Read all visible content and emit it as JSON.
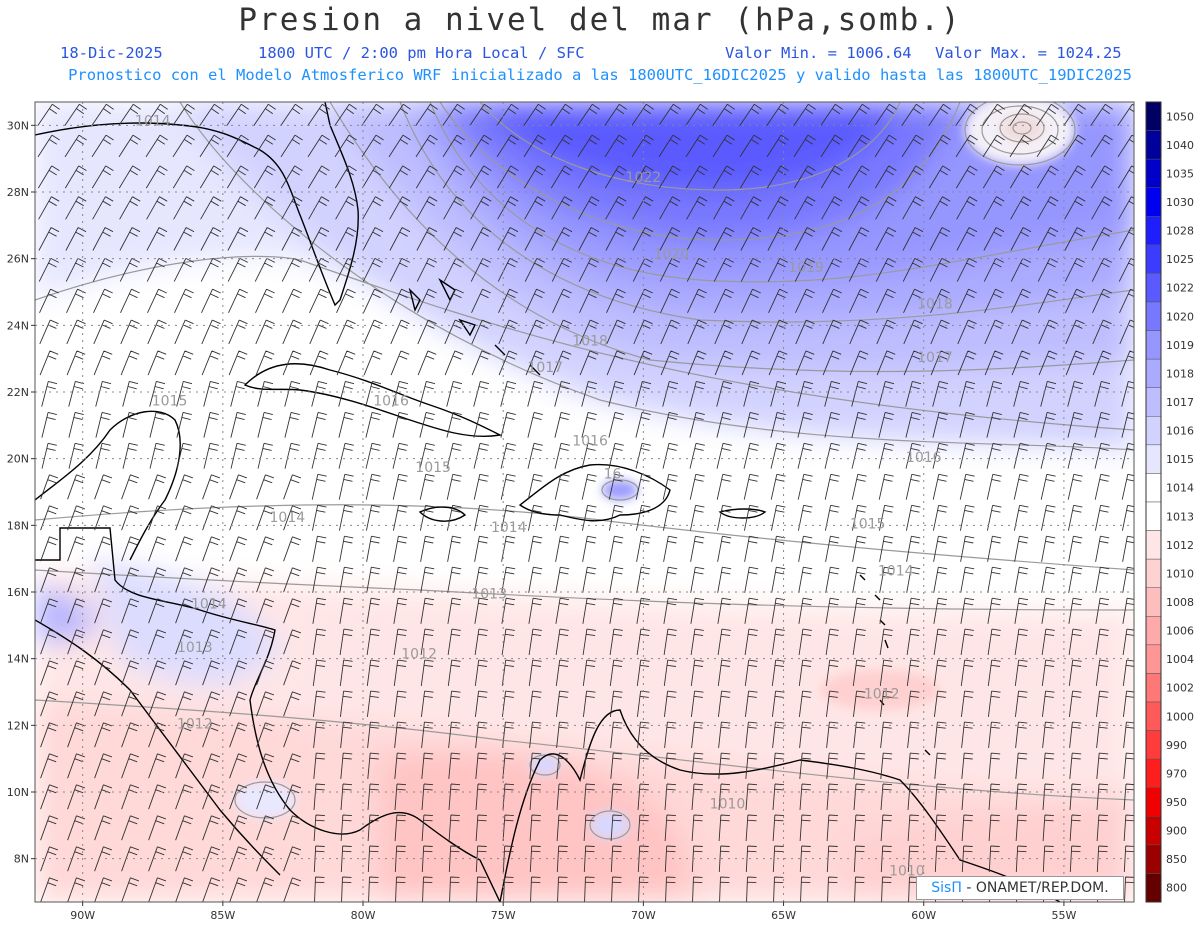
{
  "header": {
    "title": "Presion a nivel del mar (hPa,somb.)",
    "date": "18-Dic-2025",
    "time": "1800 UTC / 2:00 pm Hora Local / SFC",
    "vmin": "Valor Min. = 1006.64",
    "vmax": "Valor Max. = 1024.25",
    "model_line": "Pronostico con el Modelo Atmosferico WRF inicializado a las 1800UTC_16DIC2025 y valido hasta las  1800UTC_19DIC2025"
  },
  "axes": {
    "lat_labels": [
      "30N",
      "28N",
      "26N",
      "24N",
      "22N",
      "20N",
      "18N",
      "16N",
      "14N",
      "12N",
      "10N",
      "8N"
    ],
    "lat_values": [
      30,
      28,
      26,
      24,
      22,
      20,
      18,
      16,
      14,
      12,
      10,
      8
    ],
    "lon_labels": [
      "90W",
      "85W",
      "80W",
      "75W",
      "70W",
      "65W",
      "60W",
      "55W"
    ],
    "lon_values": [
      -90,
      -85,
      -80,
      -75,
      -70,
      -65,
      -60,
      -55
    ],
    "lat_range": [
      6.7,
      30.7
    ],
    "lon_range": [
      -91.7,
      -52.5
    ]
  },
  "colorbar": {
    "labels": [
      "1050",
      "1040",
      "1035",
      "1030",
      "1028",
      "1025",
      "1022",
      "1020",
      "1019",
      "1018",
      "1017",
      "1016",
      "1015",
      "1014",
      "1013",
      "1012",
      "1010",
      "1008",
      "1006",
      "1004",
      "1002",
      "1000",
      "990",
      "970",
      "950",
      "900",
      "850",
      "800"
    ],
    "colors": [
      "#000064",
      "#00009b",
      "#0000c8",
      "#0000f0",
      "#1e1eff",
      "#3c3cff",
      "#5a5aff",
      "#7878ff",
      "#9696ff",
      "#aaaaff",
      "#bebeff",
      "#d2d2ff",
      "#e6e6ff",
      "#ffffff",
      "#ffffff",
      "#ffe6e6",
      "#ffd2d2",
      "#ffbebe",
      "#ffaaaa",
      "#ff9696",
      "#ff7878",
      "#ff5a5a",
      "#ff3c3c",
      "#ff1e1e",
      "#f00000",
      "#c80000",
      "#9b0000",
      "#640000"
    ]
  },
  "contour_labels": [
    {
      "text": "1014",
      "lon": -87.5,
      "lat": 30.0
    },
    {
      "text": "1022",
      "lon": -70.0,
      "lat": 28.3
    },
    {
      "text": "1020",
      "lon": -69.0,
      "lat": 26.0
    },
    {
      "text": "1019",
      "lon": -64.2,
      "lat": 25.6
    },
    {
      "text": "1018",
      "lon": -59.6,
      "lat": 24.5
    },
    {
      "text": "1018",
      "lon": -71.9,
      "lat": 23.4
    },
    {
      "text": "1017",
      "lon": -59.6,
      "lat": 22.9
    },
    {
      "text": "1017",
      "lon": -73.5,
      "lat": 22.6
    },
    {
      "text": "1015",
      "lon": -86.9,
      "lat": 21.6
    },
    {
      "text": "1016",
      "lon": -79.0,
      "lat": 21.6
    },
    {
      "text": "1016",
      "lon": -71.9,
      "lat": 20.4
    },
    {
      "text": "1016",
      "lon": -60.0,
      "lat": 19.9
    },
    {
      "text": "1015",
      "lon": -77.5,
      "lat": 19.6
    },
    {
      "text": "16",
      "lon": -71.1,
      "lat": 19.4
    },
    {
      "text": "1014",
      "lon": -82.7,
      "lat": 18.1
    },
    {
      "text": "1014",
      "lon": -74.8,
      "lat": 17.8
    },
    {
      "text": "1015",
      "lon": -62.0,
      "lat": 17.9
    },
    {
      "text": "1014",
      "lon": -61.0,
      "lat": 16.5
    },
    {
      "text": "1013",
      "lon": -75.5,
      "lat": 15.8
    },
    {
      "text": "1014",
      "lon": -85.5,
      "lat": 15.5
    },
    {
      "text": "1013",
      "lon": -86.0,
      "lat": 14.2
    },
    {
      "text": "1012",
      "lon": -78.0,
      "lat": 14.0
    },
    {
      "text": "1012",
      "lon": -61.5,
      "lat": 12.8
    },
    {
      "text": "1012",
      "lon": -86.0,
      "lat": 11.9
    },
    {
      "text": "1010",
      "lon": -67.0,
      "lat": 9.5
    },
    {
      "text": "1010",
      "lon": -60.6,
      "lat": 7.5
    }
  ],
  "credit": {
    "brand": "SisΠ",
    "text": " - ONAMET/REP.DOM."
  }
}
